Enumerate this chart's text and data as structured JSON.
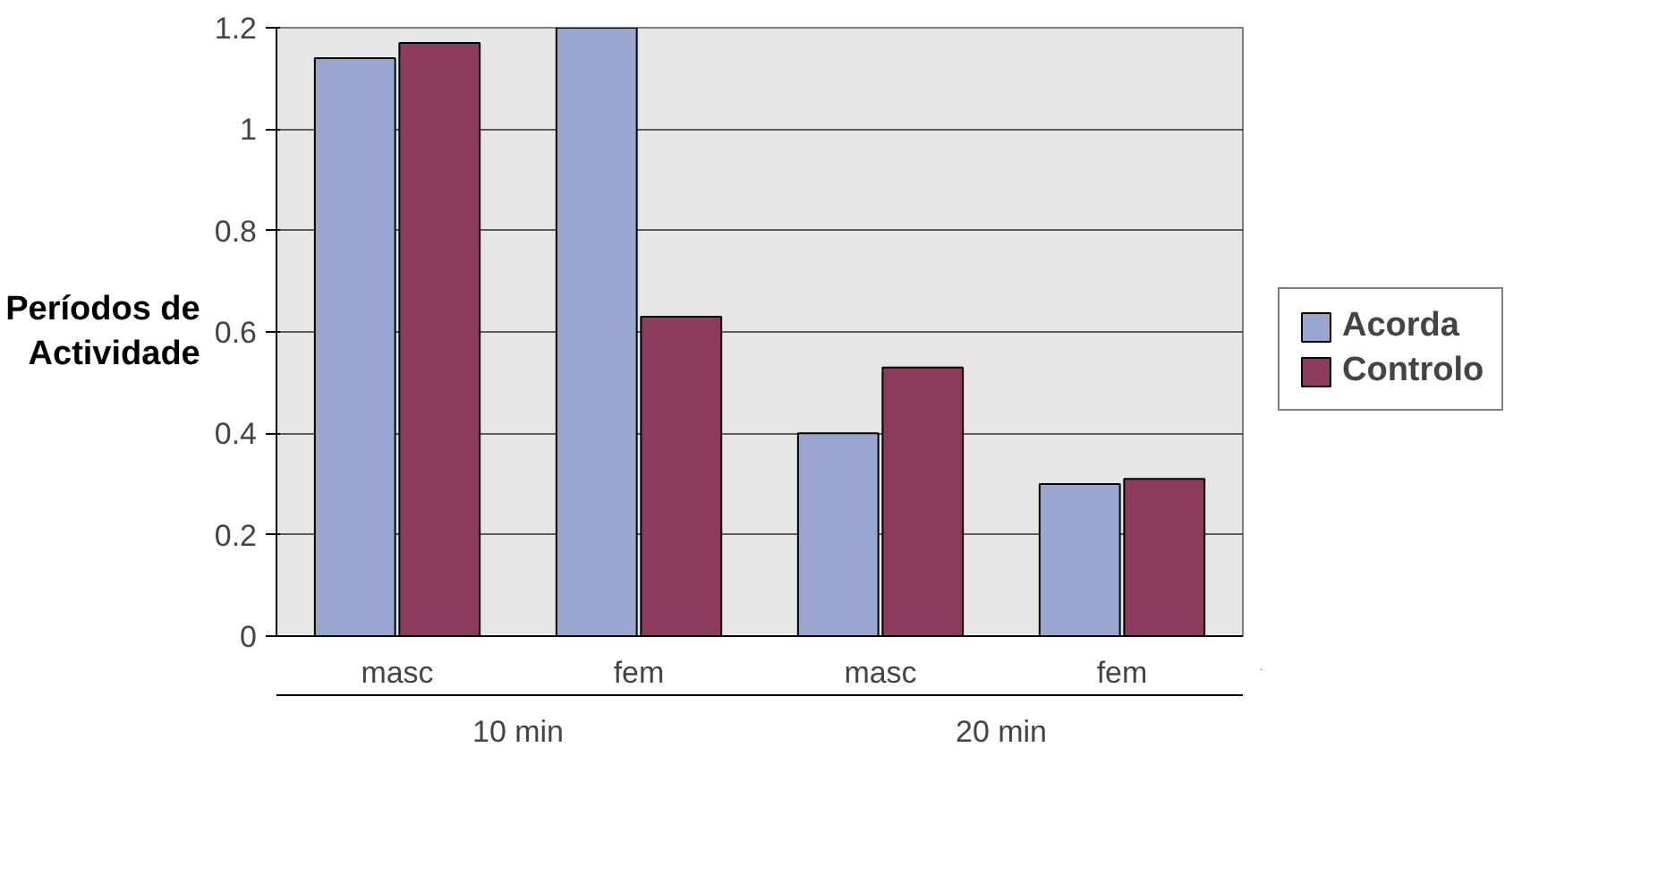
{
  "chart_data": {
    "type": "bar",
    "ylabel": "Períodos de\nActividade",
    "categories": [
      "masc",
      "fem",
      "masc",
      "fem"
    ],
    "series": [
      {
        "name": "Acorda",
        "color": "#9aa6d2",
        "values": [
          1.14,
          1.2,
          0.4,
          0.3
        ]
      },
      {
        "name": "Controlo",
        "color": "#8c3a5e",
        "values": [
          1.17,
          0.63,
          0.53,
          0.31
        ]
      }
    ],
    "ylim": [
      0,
      1.2
    ],
    "yticks": [
      0,
      0.2,
      0.4,
      0.6,
      0.8,
      1,
      1.2
    ],
    "grid": "y",
    "legend": "right",
    "annotations": [
      "10 min",
      "20 min"
    ]
  }
}
